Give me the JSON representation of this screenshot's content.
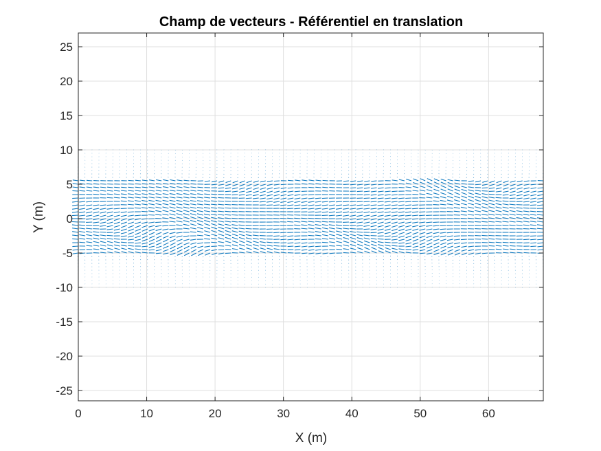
{
  "chart_data": {
    "type": "quiver",
    "title": "Champ de vecteurs - Référentiel en translation",
    "xlabel": "X (m)",
    "ylabel": "Y (m)",
    "xlim": [
      0,
      68
    ],
    "ylim": [
      -26.5,
      27
    ],
    "xticks": [
      "0",
      "10",
      "20",
      "30",
      "40",
      "50",
      "60"
    ],
    "yticks": [
      "25",
      "20",
      "15",
      "10",
      "5",
      "0",
      "-5",
      "-10",
      "-15",
      "-20",
      "-25"
    ],
    "grid": true,
    "series_color": "#0072BD",
    "field": {
      "x_range": [
        0,
        68
      ],
      "y_range": [
        -10,
        10
      ],
      "nx": 68,
      "ny": 41,
      "dominant_direction": "-x",
      "core_band_y": [
        -5,
        5.5
      ],
      "core_magnitude": 1.0,
      "edge_magnitude": 0.15
    }
  }
}
